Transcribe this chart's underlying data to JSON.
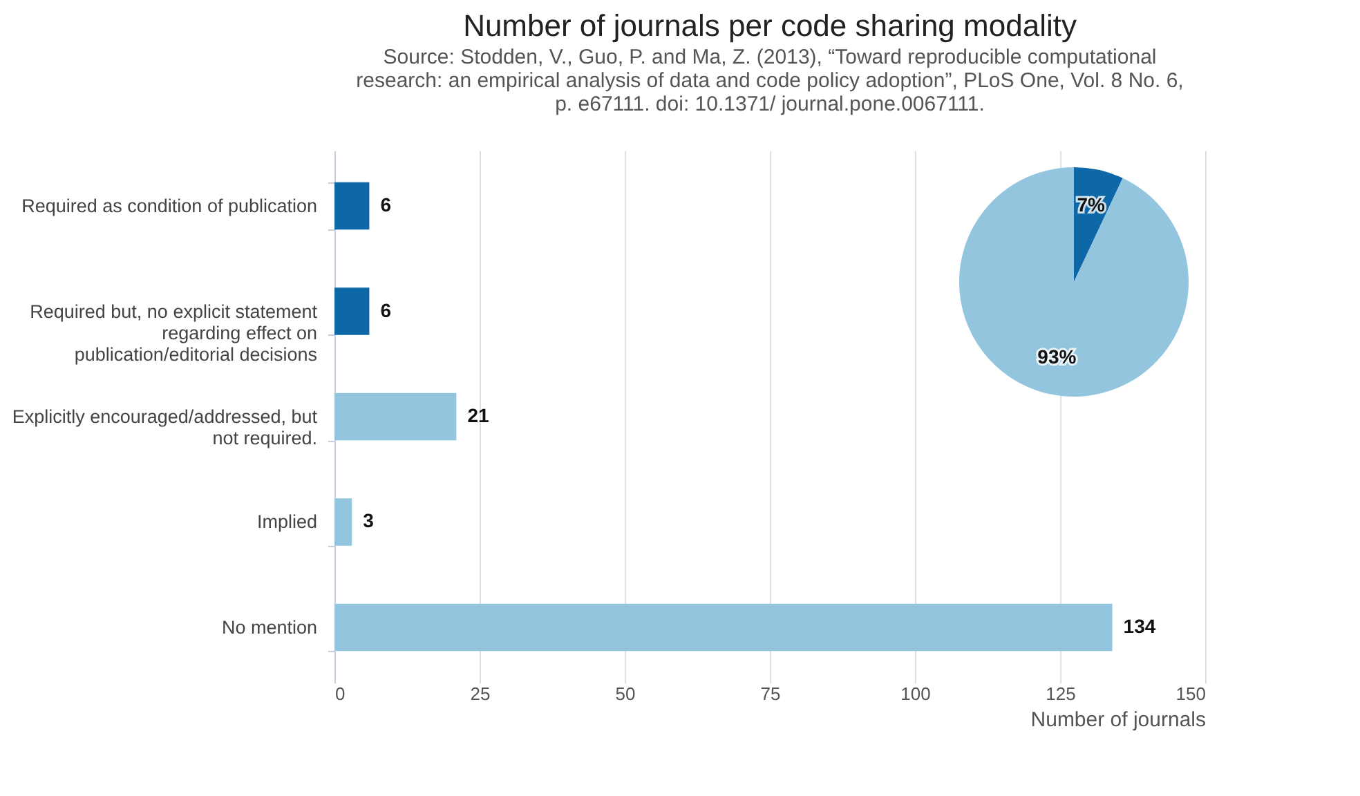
{
  "chart_data": [
    {
      "type": "bar",
      "orientation": "horizontal",
      "title": "Number of journals per code sharing modality",
      "annotations": [
        "Source: Stodden, V., Guo, P. and Ma, Z. (2013), “Toward reproducible computational research: an empirical analysis of data and code policy adoption”, PLoS One, Vol. 8 No. 6, p. e67111. doi: 10.1371/ journal.pone.0067111."
      ],
      "categories": [
        "Required as condition of publication",
        "Required but, no explicit statement regarding effect on publication/editorial decisions",
        "Explicitly encouraged/addressed, but not required.",
        "Implied",
        "No mention"
      ],
      "values": [
        6,
        6,
        21,
        3,
        134
      ],
      "colors": [
        "#0e68a8",
        "#0e68a8",
        "#93c5df",
        "#93c5df",
        "#93c5df"
      ],
      "xlim": [
        0,
        150
      ],
      "xticks": [
        0,
        25,
        50,
        75,
        100,
        125,
        150
      ],
      "xlabel": "Number of journals",
      "grid": "x",
      "data_labels": true
    },
    {
      "type": "pie",
      "categories": [
        null,
        null
      ],
      "values": [
        7,
        93
      ],
      "colors": [
        "#0e68a8",
        "#93c5df"
      ],
      "value_labels": [
        "7%",
        "93%"
      ]
    }
  ]
}
